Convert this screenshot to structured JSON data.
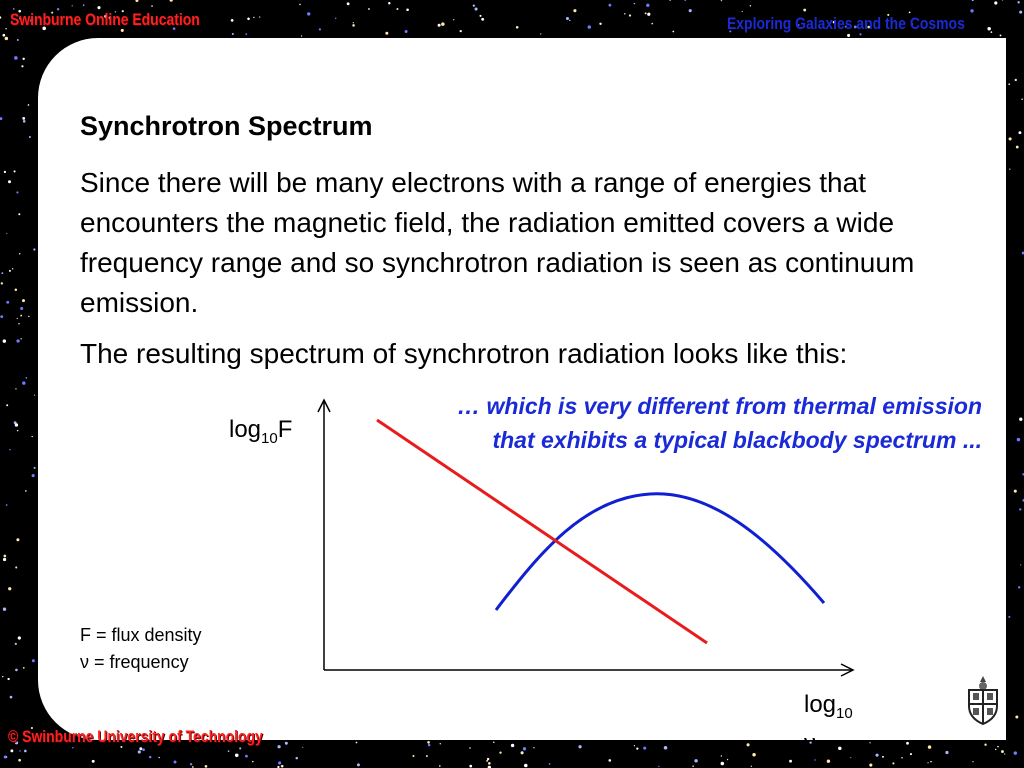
{
  "header": {
    "left": "Swinburne Online Education",
    "right": "Exploring Galaxies and the Cosmos",
    "footer": "© Swinburne University of Technology"
  },
  "slide": {
    "title": "Synchrotron Spectrum",
    "para1": "Since there will be many electrons with a range of energies that encounters the magnetic field, the radiation emitted covers a wide frequency range and so synchrotron radiation is seen as continuum emission.",
    "para2": "The resulting spectrum of synchrotron radiation looks like this:",
    "note": "… which is very different from thermal emission that exhibits a typical blackbody spectrum ...",
    "legend1": "F = flux density",
    "legend2": "ν = frequency"
  },
  "axes": {
    "y_prefix": "log",
    "y_sub": "10",
    "y_var": "F",
    "x_prefix": "log",
    "x_sub": "10",
    "x_var": "ν"
  },
  "colors": {
    "synchrotron": "#e81c1c",
    "blackbody": "#1020d0",
    "header_red": "#ff2020",
    "header_blue": "#1a2ad6"
  },
  "icons": [
    "university-crest-icon"
  ]
}
